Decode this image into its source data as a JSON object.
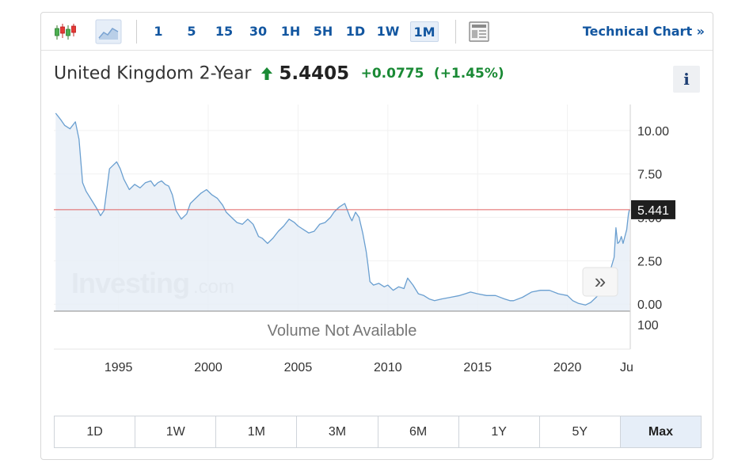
{
  "toolbar": {
    "intervals": [
      "1",
      "5",
      "15",
      "30",
      "1H",
      "5H",
      "1D",
      "1W",
      "1M"
    ],
    "active_interval": "1M",
    "technical_chart_label": "Technical Chart »"
  },
  "header": {
    "title": "United Kingdom 2-Year",
    "price": "5.4405",
    "change": "+0.0775",
    "change_pct": "(+1.45%)",
    "info_label": "i"
  },
  "watermark": {
    "brand": "Investing",
    "suffix": ".com"
  },
  "volume_text": "Volume Not Available",
  "scroll_button_label": "»",
  "range_buttons": [
    "1D",
    "1W",
    "1M",
    "3M",
    "6M",
    "1Y",
    "5Y",
    "Max"
  ],
  "active_range": "Max",
  "colors": {
    "accent": "#1256a0",
    "positive": "#1a8a35",
    "line": "#6a9fd0",
    "area_fill": "#e7eef7",
    "reference_line": "#e06060",
    "price_tag_bg": "#1f1f1f"
  },
  "chart_data": {
    "type": "area",
    "x_tick_labels": [
      "1995",
      "2000",
      "2005",
      "2010",
      "2015",
      "2020",
      "Ju"
    ],
    "y_tick_labels": [
      "10.00",
      "7.50",
      "5.00",
      "2.50",
      "0.00"
    ],
    "ylim": [
      -0.4,
      11.5
    ],
    "xlim": [
      1991.4,
      2023.5
    ],
    "volume_axis_label": "100",
    "current_value_label": "5.441",
    "reference_level": 5.44,
    "series": [
      {
        "x": [
          1991.5,
          1991.8,
          1992.0,
          1992.3,
          1992.6,
          1992.8,
          1993.0,
          1993.2,
          1993.5,
          1993.8,
          1994.0,
          1994.2,
          1994.5,
          1994.7,
          1994.9,
          1995.1,
          1995.3,
          1995.6,
          1995.9,
          1996.2,
          1996.5,
          1996.8,
          1997.0,
          1997.2,
          1997.4,
          1997.6,
          1997.8,
          1998.0,
          1998.2,
          1998.5,
          1998.8,
          1999.0,
          1999.3,
          1999.6,
          1999.9,
          2000.2,
          2000.5,
          2000.8,
          2001.0,
          2001.3,
          2001.6,
          2001.9,
          2002.2,
          2002.5,
          2002.8,
          2003.0,
          2003.3,
          2003.6,
          2003.9,
          2004.2,
          2004.5,
          2004.8,
          2005.0,
          2005.3,
          2005.6,
          2005.9,
          2006.2,
          2006.5,
          2006.8,
          2007.0,
          2007.3,
          2007.6,
          2007.9,
          2008.0,
          2008.2,
          2008.4,
          2008.6,
          2008.8,
          2008.9,
          2009.0,
          2009.2,
          2009.5,
          2009.8,
          2010.0,
          2010.3,
          2010.6,
          2010.9,
          2011.1,
          2011.4,
          2011.7,
          2012.0,
          2012.3,
          2012.6,
          2013.0,
          2013.5,
          2014.0,
          2014.3,
          2014.6,
          2015.0,
          2015.5,
          2016.0,
          2016.5,
          2016.8,
          2017.0,
          2017.5,
          2018.0,
          2018.5,
          2019.0,
          2019.5,
          2020.0,
          2020.3,
          2020.6,
          2021.0,
          2021.3,
          2021.6,
          2021.9,
          2022.2,
          2022.4,
          2022.6,
          2022.7,
          2022.8,
          2022.9,
          2023.0,
          2023.1,
          2023.3,
          2023.4,
          2023.45
        ],
        "values": [
          11.0,
          10.6,
          10.3,
          10.1,
          10.5,
          9.5,
          7.0,
          6.5,
          6.0,
          5.5,
          5.1,
          5.4,
          7.8,
          8.0,
          8.2,
          7.8,
          7.2,
          6.6,
          6.9,
          6.7,
          7.0,
          7.1,
          6.8,
          7.0,
          7.1,
          6.9,
          6.8,
          6.3,
          5.4,
          4.9,
          5.2,
          5.8,
          6.1,
          6.4,
          6.6,
          6.3,
          6.1,
          5.7,
          5.3,
          5.0,
          4.7,
          4.6,
          4.9,
          4.6,
          3.9,
          3.8,
          3.5,
          3.8,
          4.2,
          4.5,
          4.9,
          4.7,
          4.5,
          4.3,
          4.1,
          4.2,
          4.6,
          4.7,
          5.0,
          5.3,
          5.6,
          5.8,
          5.0,
          4.8,
          5.3,
          5.0,
          4.1,
          3.0,
          2.2,
          1.3,
          1.1,
          1.2,
          1.0,
          1.1,
          0.8,
          1.0,
          0.9,
          1.5,
          1.1,
          0.6,
          0.5,
          0.3,
          0.2,
          0.3,
          0.4,
          0.5,
          0.6,
          0.7,
          0.6,
          0.5,
          0.5,
          0.3,
          0.2,
          0.2,
          0.4,
          0.7,
          0.8,
          0.8,
          0.6,
          0.5,
          0.2,
          0.05,
          -0.05,
          0.1,
          0.4,
          0.7,
          1.4,
          2.0,
          2.7,
          4.4,
          3.5,
          3.6,
          3.9,
          3.5,
          4.3,
          5.2,
          5.44
        ]
      }
    ]
  }
}
